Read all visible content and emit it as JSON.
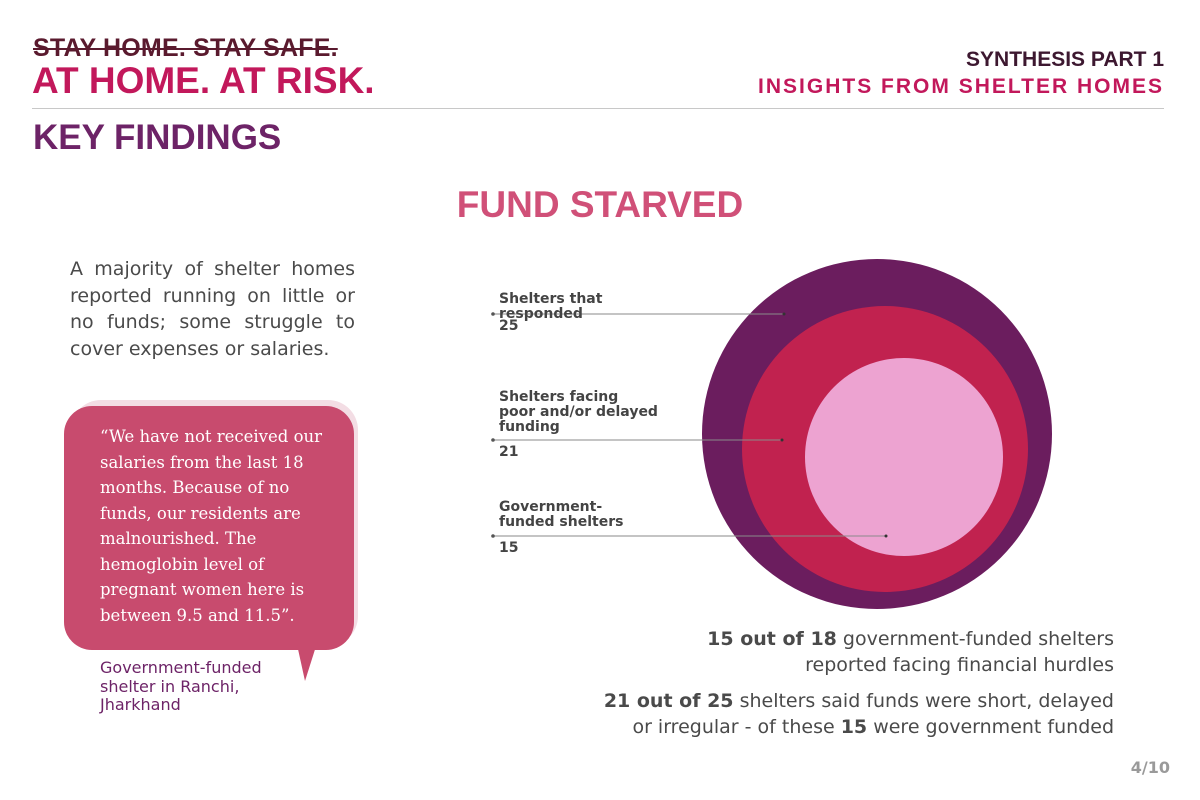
{
  "header": {
    "strike_text": "STAY HOME. STAY SAFE.",
    "title": "AT HOME. AT RISK.",
    "synthesis_part": "SYNTHESIS PART 1",
    "synthesis_subtitle": "INSIGHTS FROM SHELTER HOMES"
  },
  "section_title": "KEY FINDINGS",
  "panel_title": "FUND STARVED",
  "intro_text": "A majority of shelter homes reported running on little or no funds; some struggle to cover expenses or salaries.",
  "quote": {
    "text": "“We have not received our salaries from the last 18 months. Because of no funds, our residents are malnourished. The hemoglobin level of pregnant women here is between 9.5 and 11.5”.",
    "attribution": "Government-funded shelter in Ranchi, Jharkhand"
  },
  "circles": [
    {
      "label": "Shelters that responded",
      "value": "25",
      "color": "#6b1d5e"
    },
    {
      "label": "Shelters facing poor and/or delayed funding",
      "value": "21",
      "color": "#c1224f"
    },
    {
      "label": "Government-funded shelters",
      "value": "15",
      "color": "#eda3d1"
    }
  ],
  "summary": [
    {
      "bold": "15 out of 18",
      "rest": " government-funded shelters reported facing financial hurdles"
    },
    {
      "bold": "21 out of 25",
      "rest": " shelters said funds were short, delayed or irregular - of these ",
      "bold2": "15",
      "rest2": " were government funded"
    }
  ],
  "page_number": "4/10",
  "colors": {
    "accent_pink": "#c2185b",
    "purple": "#6d2367",
    "bubble": "#c84b6e"
  }
}
